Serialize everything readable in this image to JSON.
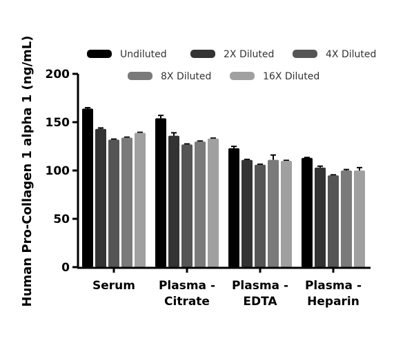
{
  "chart_data": {
    "type": "bar",
    "title": "",
    "xlabel": "",
    "ylabel": "Human Pro-Collagen 1 alpha 1 (ng/mL)",
    "ylim": [
      0,
      200
    ],
    "yticks": [
      "0",
      "50",
      "100",
      "150",
      "200"
    ],
    "categories": [
      [
        "Serum"
      ],
      [
        "Plasma -",
        "Citrate"
      ],
      [
        "Plasma -",
        "EDTA"
      ],
      [
        "Plasma -",
        "Heparin"
      ]
    ],
    "legend_position": "top",
    "grid": false,
    "series": [
      {
        "name": "Undiluted",
        "color": "#000000",
        "values": [
          164,
          154,
          123,
          113
        ],
        "errors": [
          1,
          3,
          2,
          0.5
        ]
      },
      {
        "name": "2X Diluted",
        "color": "#333333",
        "values": [
          143,
          136,
          111,
          103
        ],
        "errors": [
          1,
          3,
          0.5,
          1.5
        ]
      },
      {
        "name": "4X Diluted",
        "color": "#555555",
        "values": [
          132,
          127,
          106,
          95
        ],
        "errors": [
          0.5,
          0.5,
          0.5,
          0.5
        ]
      },
      {
        "name": "8X Diluted",
        "color": "#7a7a7a",
        "values": [
          134,
          130,
          111,
          100
        ],
        "errors": [
          0.5,
          0.5,
          5,
          1
        ]
      },
      {
        "name": "16X Diluted",
        "color": "#a0a0a0",
        "values": [
          139,
          133,
          110,
          100
        ],
        "errors": [
          0.5,
          0.5,
          0.5,
          3
        ]
      }
    ]
  }
}
